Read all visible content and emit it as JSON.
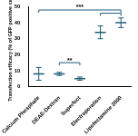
{
  "chart_data": {
    "type": "line",
    "line_style": "none",
    "marker": "line",
    "y_label": "Transfection efficacy (% of GFP positive cells)",
    "categories": [
      "Calcium Phosphate",
      "DEAE-Dextran",
      "Superfect",
      "Electroporation",
      "Lipofectamine 2000"
    ],
    "values": [
      8,
      8,
      5,
      34,
      40
    ],
    "errors": [
      4,
      1,
      1,
      4,
      3
    ],
    "color": "#1f5c7a",
    "ylim": [
      0,
      50
    ],
    "yticks": [
      0,
      10,
      20,
      30,
      40,
      50
    ],
    "grid": false,
    "annotations": [
      {
        "text": "***",
        "from": "Calcium Phosphate",
        "to": "Lipofectamine 2000",
        "y": 48
      },
      {
        "text": "**",
        "from": "DEAE-Dextran",
        "to": "Superfect",
        "y": 15
      },
      {
        "from": "Electroporation",
        "to": "Lipofectamine 2000",
        "y": 46
      }
    ]
  }
}
